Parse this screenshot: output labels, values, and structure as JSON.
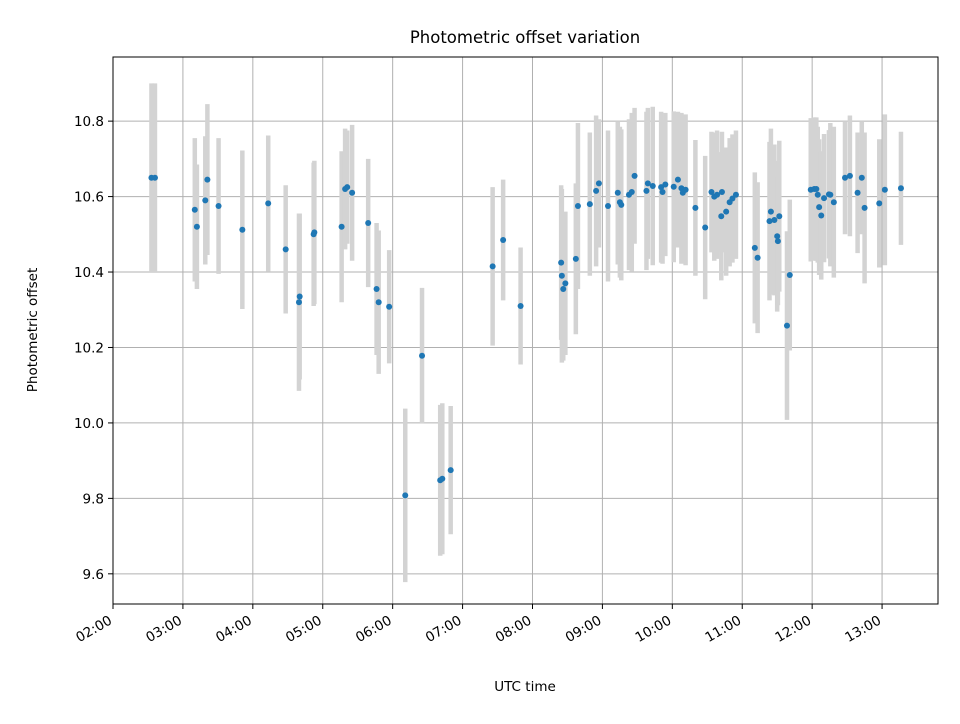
{
  "chart_data": {
    "type": "scatter",
    "title": "Photometric offset variation",
    "xlabel": "UTC time",
    "ylabel": "Photometric offset",
    "x_unit": "hours (UTC)",
    "xlim": [
      2.0,
      13.8
    ],
    "ylim": [
      9.52,
      10.97
    ],
    "grid": true,
    "x_ticks": [
      {
        "value": 2,
        "label": "02:00"
      },
      {
        "value": 3,
        "label": "03:00"
      },
      {
        "value": 4,
        "label": "04:00"
      },
      {
        "value": 5,
        "label": "05:00"
      },
      {
        "value": 6,
        "label": "06:00"
      },
      {
        "value": 7,
        "label": "07:00"
      },
      {
        "value": 8,
        "label": "08:00"
      },
      {
        "value": 9,
        "label": "09:00"
      },
      {
        "value": 10,
        "label": "10:00"
      },
      {
        "value": 11,
        "label": "11:00"
      },
      {
        "value": 12,
        "label": "12:00"
      },
      {
        "value": 13,
        "label": "13:00"
      }
    ],
    "y_ticks": [
      {
        "value": 9.6,
        "label": "9.6"
      },
      {
        "value": 9.8,
        "label": "9.8"
      },
      {
        "value": 10.0,
        "label": "10.0"
      },
      {
        "value": 10.2,
        "label": "10.2"
      },
      {
        "value": 10.4,
        "label": "10.4"
      },
      {
        "value": 10.6,
        "label": "10.6"
      },
      {
        "value": 10.8,
        "label": "10.8"
      }
    ],
    "marker_color": "#1f77b4",
    "errorbar_color": "#d3d3d3",
    "series": [
      {
        "x": [
          2.55,
          2.6,
          3.17,
          3.2,
          3.32,
          3.35,
          3.51,
          3.85,
          4.22,
          4.47,
          4.66,
          4.67,
          4.87,
          4.88,
          5.27,
          5.32,
          5.35,
          5.42,
          5.65,
          5.77,
          5.8,
          5.95,
          6.18,
          6.42,
          6.68,
          6.71,
          6.83,
          7.43,
          7.58,
          7.83,
          8.41,
          8.42,
          8.44,
          8.47,
          8.62,
          8.65,
          8.82,
          8.91,
          8.95,
          9.08,
          9.22,
          9.25,
          9.27,
          9.38,
          9.42,
          9.46,
          9.63,
          9.65,
          9.72,
          9.84,
          9.86,
          9.9,
          10.02,
          10.08,
          10.13,
          10.15,
          10.19,
          10.33,
          10.47,
          10.56,
          10.6,
          10.64,
          10.7,
          10.71,
          10.77,
          10.82,
          10.86,
          10.91,
          11.18,
          11.22,
          11.39,
          11.41,
          11.46,
          11.5,
          11.51,
          11.53,
          11.64,
          11.68,
          11.98,
          12.03,
          12.06,
          12.08,
          12.1,
          12.13,
          12.17,
          12.24,
          12.26,
          12.31,
          12.47,
          12.54,
          12.65,
          12.71,
          12.75,
          12.96,
          13.04,
          13.27
        ],
        "y": [
          10.65,
          10.65,
          10.565,
          10.52,
          10.59,
          10.645,
          10.575,
          10.512,
          10.582,
          10.46,
          10.32,
          10.335,
          10.5,
          10.505,
          10.52,
          10.62,
          10.625,
          10.61,
          10.53,
          10.355,
          10.32,
          10.308,
          9.808,
          10.178,
          9.848,
          9.852,
          9.875,
          10.415,
          10.485,
          10.31,
          10.425,
          10.39,
          10.355,
          10.37,
          10.435,
          10.575,
          10.58,
          10.615,
          10.635,
          10.575,
          10.61,
          10.585,
          10.578,
          10.605,
          10.612,
          10.655,
          10.615,
          10.635,
          10.628,
          10.625,
          10.612,
          10.632,
          10.626,
          10.645,
          10.622,
          10.61,
          10.618,
          10.57,
          10.518,
          10.612,
          10.6,
          10.605,
          10.548,
          10.612,
          10.56,
          10.585,
          10.595,
          10.605,
          10.464,
          10.438,
          10.535,
          10.56,
          10.538,
          10.495,
          10.482,
          10.548,
          10.258,
          10.392,
          10.618,
          10.62,
          10.62,
          10.605,
          10.572,
          10.55,
          10.596,
          10.606,
          10.605,
          10.585,
          10.65,
          10.655,
          10.61,
          10.65,
          10.57,
          10.582,
          10.618,
          10.622
        ],
        "err": [
          0.25,
          0.25,
          0.19,
          0.165,
          0.17,
          0.2,
          0.18,
          0.21,
          0.18,
          0.17,
          0.235,
          0.22,
          0.19,
          0.19,
          0.2,
          0.16,
          0.15,
          0.18,
          0.17,
          0.175,
          0.19,
          0.15,
          0.23,
          0.18,
          0.2,
          0.2,
          0.17,
          0.21,
          0.16,
          0.155,
          0.205,
          0.23,
          0.19,
          0.19,
          0.2,
          0.22,
          0.19,
          0.2,
          0.17,
          0.2,
          0.19,
          0.2,
          0.2,
          0.2,
          0.21,
          0.18,
          0.21,
          0.2,
          0.21,
          0.2,
          0.19,
          0.19,
          0.2,
          0.18,
          0.2,
          0.18,
          0.2,
          0.18,
          0.19,
          0.16,
          0.17,
          0.17,
          0.17,
          0.16,
          0.17,
          0.17,
          0.17,
          0.17,
          0.2,
          0.2,
          0.21,
          0.22,
          0.2,
          0.2,
          0.17,
          0.2,
          0.25,
          0.2,
          0.19,
          0.19,
          0.19,
          0.18,
          0.18,
          0.17,
          0.17,
          0.17,
          0.19,
          0.2,
          0.15,
          0.16,
          0.16,
          0.15,
          0.2,
          0.17,
          0.2,
          0.15
        ]
      }
    ]
  }
}
